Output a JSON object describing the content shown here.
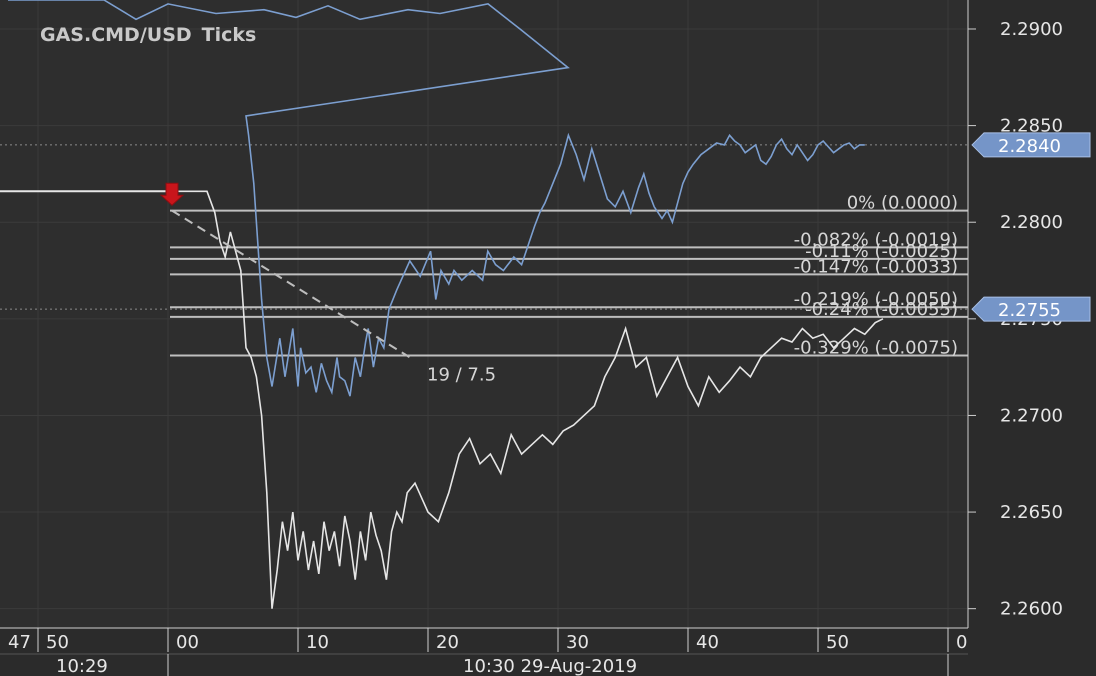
{
  "chart_data": {
    "type": "line",
    "title": "GAS.CMD/USD",
    "subtitle": "Ticks",
    "ylim": [
      2.259,
      2.2915
    ],
    "y_ticks": [
      "2.2900",
      "2.2850",
      "2.2800",
      "2.2750",
      "2.2700",
      "2.2650",
      "2.2600"
    ],
    "y_tick_values": [
      2.29,
      2.285,
      2.28,
      2.275,
      2.27,
      2.265,
      2.26
    ],
    "x_ticks": [
      "47",
      "50",
      "00",
      "10",
      "20",
      "30",
      "40",
      "50",
      "0"
    ],
    "x_date_labels": [
      "10:29",
      "10:30 29-Aug-2019"
    ],
    "grid": true,
    "price_tags": [
      {
        "label": "2.2840",
        "value": 2.284
      },
      {
        "label": "2.2755",
        "value": 2.2755
      }
    ],
    "reference_line": {
      "value": 2.2816
    },
    "fib_levels": [
      {
        "label": "0% (0.0000)",
        "value": 2.2806
      },
      {
        "label": "-0.082% (-0.0019)",
        "value": 2.2787
      },
      {
        "label": "-0.11% (-0.0025)",
        "value": 2.2781
      },
      {
        "label": "-0.147% (-0.0033)",
        "value": 2.2773
      },
      {
        "label": "-0.219% (-0.0050)",
        "value": 2.2756
      },
      {
        "label": "-0.24% (-0.0055)",
        "value": 2.2751
      },
      {
        "label": "-0.329% (-0.0075)",
        "value": 2.2731
      }
    ],
    "annotation": "19 / 7.5",
    "series": [
      {
        "color": "#7c9fd0",
        "x": [
          0,
          3,
          6,
          8,
          10,
          13,
          16,
          18,
          20,
          22,
          25,
          27,
          30,
          32,
          35,
          37,
          38,
          40,
          42,
          43,
          45,
          47,
          50,
          52,
          55,
          57,
          58,
          60,
          62,
          64,
          66,
          68,
          70,
          72,
          73,
          75,
          77,
          79,
          81,
          83,
          84,
          86,
          88,
          90,
          92,
          95,
          100,
          104,
          108,
          110,
          112,
          115,
          117,
          120,
          124,
          128,
          130,
          133,
          136,
          140,
          143,
          146,
          148,
          150,
          152,
          155,
          158,
          161,
          164,
          167,
          170,
          173,
          176,
          179,
          182,
          185,
          188,
          190,
          192,
          194,
          197,
          199,
          201,
          203,
          205,
          207,
          209,
          212,
          215,
          218,
          221,
          223,
          225,
          227,
          229,
          231,
          233,
          235,
          237,
          239,
          241,
          243,
          245,
          247,
          249,
          251,
          253,
          255,
          257,
          259,
          261,
          263,
          265,
          267,
          269,
          271,
          273,
          275
        ],
        "y": [
          2.2915,
          2.2915,
          2.2915,
          2.2905,
          2.2913,
          2.2908,
          2.291,
          2.2906,
          2.2912,
          2.2905,
          2.291,
          2.2908,
          2.2913,
          2.29,
          2.288,
          2.2855,
          2.2845,
          2.282,
          2.278,
          2.276,
          2.273,
          2.2715,
          2.274,
          2.272,
          2.2745,
          2.2715,
          2.2735,
          2.2722,
          2.2725,
          2.2712,
          2.2727,
          2.2718,
          2.2712,
          2.273,
          2.272,
          2.2718,
          2.271,
          2.273,
          2.272,
          2.2738,
          2.2745,
          2.2725,
          2.274,
          2.2735,
          2.2755,
          2.2765,
          2.278,
          2.2772,
          2.2785,
          2.276,
          2.2775,
          2.2768,
          2.2775,
          2.277,
          2.2775,
          2.277,
          2.2785,
          2.2778,
          2.2775,
          2.2782,
          2.2778,
          2.279,
          2.2798,
          2.2805,
          2.281,
          2.282,
          2.283,
          2.2845,
          2.2835,
          2.2822,
          2.2838,
          2.2825,
          2.2812,
          2.2808,
          2.2816,
          2.2805,
          2.2818,
          2.2825,
          2.2815,
          2.2808,
          2.2802,
          2.2806,
          2.28,
          2.281,
          2.282,
          2.2826,
          2.283,
          2.2835,
          2.2838,
          2.2841,
          2.284,
          2.2845,
          2.2842,
          2.284,
          2.2836,
          2.2838,
          2.284,
          2.2832,
          2.283,
          2.2834,
          2.284,
          2.2843,
          2.2838,
          2.2835,
          2.284,
          2.2836,
          2.2832,
          2.2835,
          2.284,
          2.2842,
          2.2839,
          2.2836,
          2.2838,
          2.284,
          2.2841,
          2.2838,
          2.284,
          2.284
        ]
      },
      {
        "color": "#e6e6e6",
        "x": [
          0,
          5,
          10,
          15,
          18,
          20,
          22,
          24,
          26,
          28,
          30,
          32,
          34,
          36,
          38,
          40,
          42,
          44,
          46,
          48,
          50,
          52,
          54,
          56,
          58,
          60,
          62,
          64,
          66,
          68,
          70,
          72,
          74,
          76,
          78,
          80,
          82,
          84,
          86,
          88,
          90,
          92,
          95,
          100,
          104,
          108,
          112,
          116,
          120,
          124,
          128,
          132,
          136,
          140,
          144,
          148,
          152,
          156,
          160,
          164,
          168,
          172,
          176,
          180,
          184,
          188,
          192,
          196,
          200,
          204,
          208,
          212,
          216,
          220,
          224,
          228,
          232,
          236,
          240,
          244,
          248,
          252,
          256,
          260,
          264,
          268,
          272,
          275
        ],
        "y": [
          2.2816,
          2.2816,
          2.2816,
          2.2816,
          2.2805,
          2.279,
          2.2782,
          2.2795,
          2.2785,
          2.2775,
          2.2735,
          2.273,
          2.272,
          2.27,
          2.266,
          2.26,
          2.262,
          2.2645,
          2.263,
          2.265,
          2.2625,
          2.264,
          2.262,
          2.2635,
          2.2618,
          2.2645,
          2.263,
          2.264,
          2.2622,
          2.2648,
          2.2635,
          2.2615,
          2.264,
          2.2625,
          2.265,
          2.2638,
          2.263,
          2.2615,
          2.264,
          2.265,
          2.2645,
          2.266,
          2.2665,
          2.265,
          2.2645,
          2.266,
          2.268,
          2.2688,
          2.2675,
          2.268,
          2.267,
          2.269,
          2.268,
          2.2685,
          2.269,
          2.2685,
          2.2692,
          2.2695,
          2.27,
          2.2705,
          2.272,
          2.273,
          2.2745,
          2.2725,
          2.273,
          2.271,
          2.272,
          2.273,
          2.2715,
          2.2705,
          2.272,
          2.2712,
          2.2718,
          2.2725,
          2.272,
          2.273,
          2.2735,
          2.274,
          2.2738,
          2.2745,
          2.274,
          2.2742,
          2.2735,
          2.274,
          2.2745,
          2.2742,
          2.2748,
          2.275
        ]
      }
    ]
  }
}
